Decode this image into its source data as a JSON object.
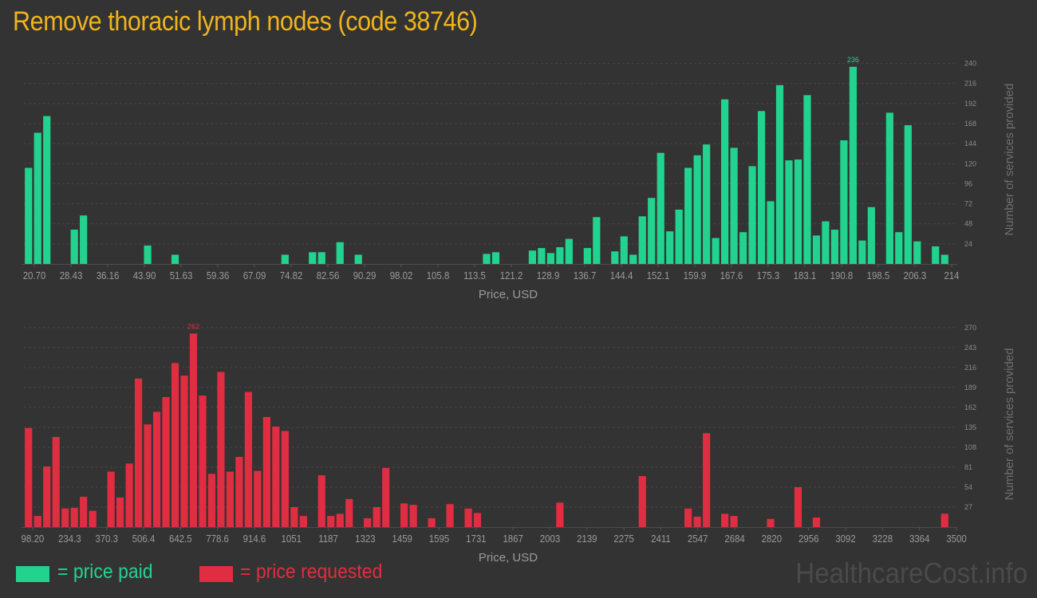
{
  "title": "Remove thoracic lymph nodes (code 38746)",
  "colors": {
    "paid": "#22d390",
    "requested": "#e12d41",
    "title": "#f0b41c",
    "background": "#333333"
  },
  "legend": {
    "paid_label": "= price paid",
    "requested_label": "= price requested"
  },
  "watermark": "HealthcareCost.info",
  "chart_data": [
    {
      "type": "bar",
      "series_role": "price paid",
      "xlabel": "Price, USD",
      "ylabel": "Number of services provided",
      "x_ticks": [
        "20.70",
        "28.43",
        "36.16",
        "43.90",
        "51.63",
        "59.36",
        "67.09",
        "74.82",
        "82.56",
        "90.29",
        "98.02",
        "105.8",
        "113.5",
        "121.2",
        "128.9",
        "136.7",
        "144.4",
        "152.1",
        "159.9",
        "167.6",
        "175.3",
        "183.1",
        "190.8",
        "198.5",
        "206.3",
        "214"
      ],
      "y_ticks": [
        24,
        48,
        72,
        96,
        120,
        144,
        168,
        192,
        216,
        240
      ],
      "ylim": [
        0,
        252
      ],
      "max_label": "236",
      "max_index": 90,
      "grid": true,
      "values": [
        115,
        157,
        177,
        0,
        0,
        41,
        58,
        0,
        0,
        0,
        0,
        0,
        0,
        22,
        0,
        0,
        11,
        0,
        0,
        0,
        0,
        0,
        0,
        0,
        0,
        0,
        0,
        0,
        11,
        0,
        0,
        14,
        14,
        0,
        26,
        0,
        11,
        0,
        0,
        0,
        0,
        0,
        0,
        0,
        0,
        0,
        0,
        0,
        0,
        0,
        12,
        14,
        0,
        0,
        0,
        16,
        19,
        13,
        20,
        30,
        0,
        19,
        56,
        0,
        15,
        33,
        11,
        57,
        79,
        133,
        39,
        65,
        115,
        130,
        143,
        31,
        197,
        139,
        38,
        117,
        183,
        75,
        214,
        124,
        125,
        202,
        34,
        51,
        41,
        148,
        236,
        28,
        68,
        0,
        181,
        38,
        166,
        27,
        0,
        21,
        11
      ]
    },
    {
      "type": "bar",
      "series_role": "price requested",
      "xlabel": "Price, USD",
      "ylabel": "Number of services provided",
      "x_ticks": [
        "98.20",
        "234.3",
        "370.3",
        "506.4",
        "642.5",
        "778.6",
        "914.6",
        "1051",
        "1187",
        "1323",
        "1459",
        "1595",
        "1731",
        "1867",
        "2003",
        "2139",
        "2275",
        "2411",
        "2547",
        "2684",
        "2820",
        "2956",
        "3092",
        "3228",
        "3364",
        "3500"
      ],
      "y_ticks": [
        27,
        54,
        81,
        108,
        135,
        162,
        189,
        216,
        243,
        270
      ],
      "ylim": [
        0,
        285
      ],
      "max_label": "262",
      "max_index": 18,
      "grid": true,
      "values": [
        134,
        15,
        82,
        122,
        25,
        26,
        41,
        22,
        0,
        75,
        40,
        86,
        201,
        139,
        156,
        176,
        222,
        205,
        262,
        178,
        72,
        210,
        75,
        95,
        183,
        76,
        149,
        136,
        130,
        27,
        15,
        0,
        70,
        15,
        18,
        38,
        0,
        12,
        27,
        80,
        0,
        32,
        30,
        0,
        12,
        0,
        31,
        0,
        25,
        19,
        0,
        0,
        0,
        0,
        0,
        0,
        0,
        0,
        33,
        0,
        0,
        0,
        0,
        0,
        0,
        0,
        0,
        69,
        0,
        0,
        0,
        0,
        25,
        14,
        127,
        0,
        18,
        15,
        0,
        0,
        0,
        11,
        0,
        0,
        54,
        0,
        13,
        0,
        0,
        0,
        0,
        0,
        0,
        0,
        0,
        0,
        0,
        0,
        0,
        0,
        18
      ]
    }
  ]
}
